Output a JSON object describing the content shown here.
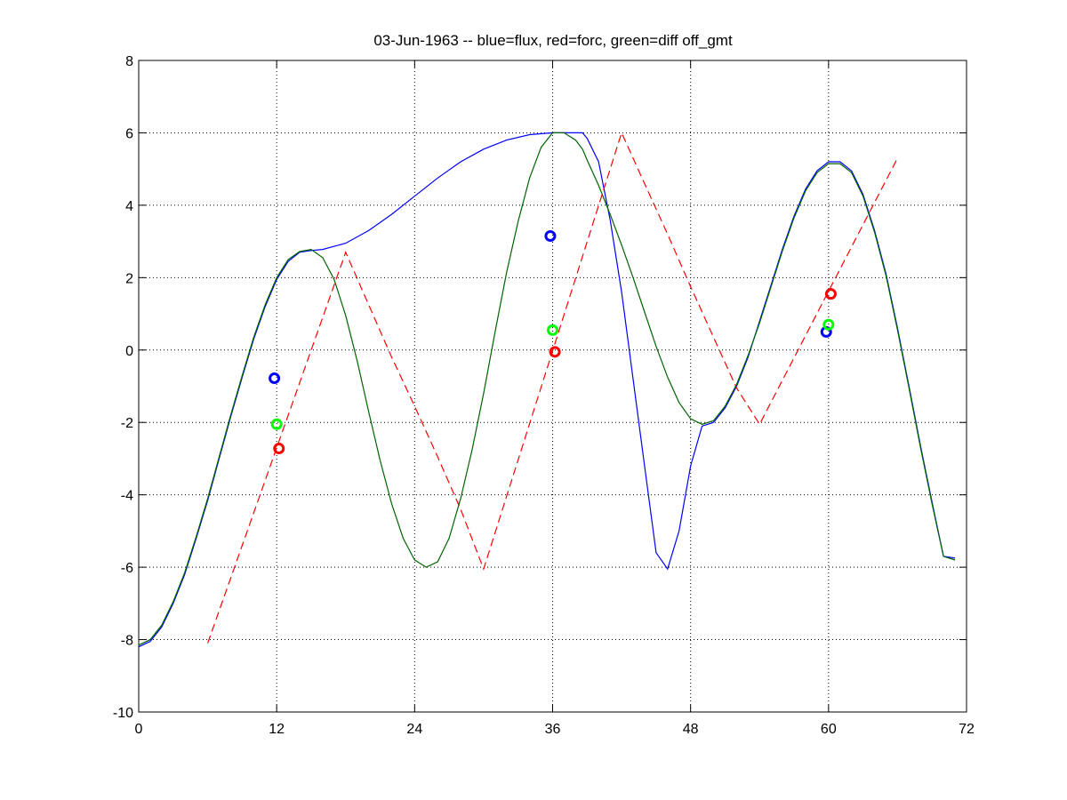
{
  "chart_data": {
    "type": "line",
    "title": "03-Jun-1963 -- blue=flux, red=forc, green=diff off_gmt",
    "xlabel": "",
    "ylabel": "",
    "xlim": [
      0,
      72
    ],
    "ylim": [
      -10,
      8
    ],
    "xticks": [
      0,
      12,
      24,
      36,
      48,
      60,
      72
    ],
    "yticks": [
      -10,
      -8,
      -6,
      -4,
      -2,
      0,
      2,
      4,
      6,
      8
    ],
    "grid": true,
    "legend": "none",
    "series": [
      {
        "color": "#0000ff",
        "style": "solid",
        "x": [
          0,
          1,
          2,
          3,
          4,
          5,
          6,
          7,
          8,
          9,
          10,
          11,
          12,
          13,
          14,
          15,
          16,
          18,
          20,
          22,
          24,
          26,
          28,
          30,
          32,
          34,
          36,
          37,
          38,
          38.6,
          39,
          40,
          41,
          42,
          43,
          44,
          45,
          46,
          47,
          48,
          49,
          50,
          51,
          52,
          53,
          54,
          55,
          56,
          57,
          58,
          59,
          60,
          61,
          62,
          63,
          64,
          65,
          66,
          67,
          68,
          69,
          70,
          71
        ],
        "y": [
          -8.2,
          -8.05,
          -7.65,
          -7.0,
          -6.2,
          -5.2,
          -4.15,
          -3.0,
          -1.85,
          -0.75,
          0.3,
          1.2,
          1.95,
          2.45,
          2.7,
          2.75,
          2.78,
          2.95,
          3.3,
          3.75,
          4.25,
          4.75,
          5.2,
          5.55,
          5.8,
          5.95,
          6.0,
          6.0,
          6.0,
          6.0,
          5.85,
          5.2,
          3.6,
          1.6,
          -0.8,
          -3.2,
          -5.6,
          -6.05,
          -5.0,
          -3.2,
          -2.1,
          -2.0,
          -1.6,
          -1.0,
          -0.2,
          0.8,
          1.8,
          2.8,
          3.7,
          4.45,
          4.95,
          5.2,
          5.2,
          4.95,
          4.3,
          3.3,
          2.1,
          0.6,
          -1.0,
          -2.65,
          -4.2,
          -5.7,
          -5.75
        ]
      },
      {
        "color": "#ff0000",
        "style": "dashed",
        "x": [
          6,
          18,
          20,
          22,
          24,
          26,
          28,
          30,
          42,
          44,
          46,
          48,
          50,
          52,
          54,
          66
        ],
        "y": [
          -8.1,
          2.7,
          1.25,
          -0.2,
          -1.55,
          -2.95,
          -4.4,
          -6.05,
          6.0,
          4.6,
          3.2,
          1.75,
          0.35,
          -1.05,
          -2.05,
          5.3
        ]
      },
      {
        "color": "#006400",
        "style": "solid",
        "x": [
          0,
          1,
          2,
          3,
          4,
          5,
          6,
          7,
          8,
          9,
          10,
          11,
          12,
          13,
          14,
          15,
          16,
          17,
          18,
          19,
          20,
          21,
          22,
          23,
          24,
          25,
          26,
          27,
          28,
          29,
          30,
          31,
          32,
          33,
          34,
          35,
          36,
          37,
          38,
          38.6,
          39,
          40,
          41,
          42,
          43,
          44,
          45,
          46,
          47,
          48,
          49,
          50,
          51,
          52,
          53,
          54,
          55,
          56,
          57,
          58,
          59,
          60,
          61,
          62,
          63,
          64,
          65,
          66,
          67,
          68,
          69,
          70,
          71
        ],
        "y": [
          -8.15,
          -8.0,
          -7.6,
          -6.95,
          -6.15,
          -5.15,
          -4.1,
          -2.95,
          -1.8,
          -0.7,
          0.35,
          1.25,
          2.0,
          2.5,
          2.72,
          2.78,
          2.55,
          1.95,
          0.95,
          -0.3,
          -1.7,
          -3.05,
          -4.25,
          -5.2,
          -5.8,
          -6.0,
          -5.85,
          -5.2,
          -4.1,
          -2.75,
          -1.2,
          0.5,
          2.15,
          3.55,
          4.75,
          5.6,
          6.0,
          6.0,
          5.8,
          5.55,
          5.25,
          4.55,
          3.75,
          2.9,
          2.0,
          1.05,
          0.1,
          -0.75,
          -1.45,
          -1.9,
          -2.05,
          -1.95,
          -1.55,
          -0.95,
          -0.15,
          0.75,
          1.75,
          2.75,
          3.65,
          4.4,
          4.9,
          5.15,
          5.15,
          4.9,
          4.25,
          3.25,
          2.05,
          0.55,
          -1.05,
          -2.7,
          -4.25,
          -5.7,
          -5.8
        ]
      }
    ],
    "markers": [
      {
        "color": "#0000ff",
        "x": 11.8,
        "y": -0.78
      },
      {
        "color": "#00ff00",
        "x": 12.0,
        "y": -2.05
      },
      {
        "color": "#ff0000",
        "x": 12.2,
        "y": -2.72
      },
      {
        "color": "#0000ff",
        "x": 35.8,
        "y": 3.15
      },
      {
        "color": "#00ff00",
        "x": 36.0,
        "y": 0.55
      },
      {
        "color": "#ff0000",
        "x": 36.2,
        "y": -0.05
      },
      {
        "color": "#0000ff",
        "x": 59.8,
        "y": 0.5
      },
      {
        "color": "#00ff00",
        "x": 60.0,
        "y": 0.7
      },
      {
        "color": "#ff0000",
        "x": 60.2,
        "y": 1.55
      }
    ]
  }
}
